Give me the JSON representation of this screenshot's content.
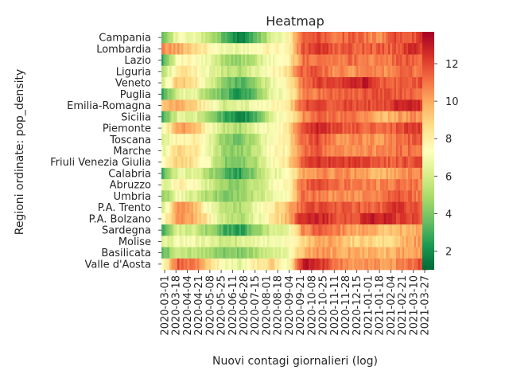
{
  "chart_data": {
    "type": "heatmap",
    "title": "Heatmap",
    "xlabel": "Nuovi contagi giornalieri (log)",
    "ylabel": "Regioni ordinate: pop_density",
    "x_tick_labels": [
      "2020-03-01",
      "2020-03-18",
      "2020-04-04",
      "2020-04-21",
      "2020-05-08",
      "2020-05-25",
      "2020-06-11",
      "2020-06-28",
      "2020-07-15",
      "2020-08-01",
      "2020-08-18",
      "2020-09-04",
      "2020-09-21",
      "2020-10-08",
      "2020-10-25",
      "2020-11-11",
      "2020-11-28",
      "2020-12-15",
      "2021-01-01",
      "2021-01-18",
      "2021-02-04",
      "2021-02-21",
      "2021-03-10",
      "2021-03-27"
    ],
    "rows": [
      "Campania",
      "Lombardia",
      "Lazio",
      "Liguria",
      "Veneto",
      "Puglia",
      "Emilia-Romagna",
      "Sicilia",
      "Piemonte",
      "Toscana",
      "Marche",
      "Friuli Venezia Giulia",
      "Calabria",
      "Abruzzo",
      "Umbria",
      "P.A. Trento",
      "P.A. Bolzano",
      "Sardegna",
      "Molise",
      "Basilicata",
      "Valle d'Aosta"
    ],
    "colorbar": {
      "ticks": [
        2,
        4,
        6,
        8,
        10,
        12
      ],
      "range": [
        1,
        13.7
      ],
      "colormap": "RdYlGn_r"
    },
    "knots": [
      [
        4,
        7,
        6.5,
        5.5,
        3.2,
        1.5,
        3.5,
        6,
        7.5,
        11.5,
        12,
        11,
        11.5,
        11,
        10.5,
        12,
        11.8,
        12.3
      ],
      [
        10.5,
        10,
        9,
        7.8,
        6.5,
        6.8,
        7.5,
        8,
        7.5,
        11.5,
        12.5,
        11.5,
        11.5,
        11.5,
        11.5,
        11.5,
        12.5,
        12.2
      ],
      [
        3,
        7.5,
        7.5,
        6.5,
        5,
        4.5,
        5.5,
        7,
        7.5,
        11,
        11.2,
        10.8,
        11.3,
        11,
        10.5,
        11.3,
        11.6,
        11.2
      ],
      [
        5,
        8.5,
        8,
        6.8,
        5.5,
        5,
        6.5,
        7.5,
        8.5,
        11.5,
        11.5,
        10.5,
        10.5,
        10.5,
        10.5,
        11,
        11.2,
        10.8
      ],
      [
        6,
        9.5,
        8.5,
        6.5,
        4,
        3.2,
        4.5,
        6.8,
        7.8,
        11,
        12,
        12.2,
        12.5,
        13,
        11.5,
        11.5,
        11.8,
        11.5
      ],
      [
        2.5,
        6.5,
        6.5,
        5,
        3.5,
        2,
        3.8,
        6.5,
        7.2,
        10.5,
        11,
        11.5,
        11.5,
        11.5,
        12,
        11.5,
        11.5,
        11.2
      ],
      [
        9,
        10,
        9,
        7.5,
        6,
        6.2,
        7,
        7.5,
        8,
        11.5,
        12.5,
        11.5,
        12,
        12,
        11.5,
        12.5,
        12.8,
        12.5
      ],
      [
        3,
        6.5,
        6.5,
        5,
        2.8,
        1.5,
        3,
        6.5,
        7.5,
        10.5,
        11.5,
        11,
        11,
        10.5,
        9.5,
        10,
        10.5,
        10.2
      ],
      [
        7,
        10,
        10,
        7.5,
        5.5,
        5,
        6.5,
        7.2,
        8,
        12,
        12.8,
        12,
        11.5,
        11.5,
        11,
        11.5,
        12.2,
        12.2
      ],
      [
        6,
        8,
        8,
        6.8,
        4.2,
        3.8,
        5.5,
        7.2,
        8,
        11.2,
        12,
        10.5,
        10.5,
        10.5,
        10.2,
        11,
        11.5,
        11.2
      ],
      [
        6.5,
        9,
        8.5,
        7,
        4.5,
        4.2,
        5.5,
        7.5,
        8,
        11,
        11.5,
        10.5,
        10.5,
        10.5,
        10.5,
        11,
        11.2,
        11
      ],
      [
        7,
        9,
        8.5,
        6.8,
        4.2,
        4,
        5,
        7.5,
        8.2,
        11.5,
        12.5,
        12,
        12,
        12,
        11.5,
        11.5,
        11.8,
        12
      ],
      [
        3,
        6.5,
        6.5,
        5,
        3.2,
        2.5,
        4.5,
        6.5,
        7,
        10,
        10.5,
        10.5,
        10.5,
        10,
        9.5,
        10.2,
        10.8,
        10.6
      ],
      [
        6,
        8,
        7.5,
        6,
        4.5,
        4.2,
        5.5,
        7,
        7.5,
        11,
        12,
        11,
        11,
        11,
        10.5,
        11,
        11,
        10.6
      ],
      [
        4,
        7,
        6,
        5,
        4.2,
        4.5,
        5.5,
        6.5,
        7,
        11,
        11,
        10.5,
        10.5,
        10.5,
        11,
        11.8,
        11.2,
        10.8
      ],
      [
        6,
        10.5,
        9.5,
        7,
        5.5,
        5,
        6.5,
        8,
        9.5,
        11.5,
        12,
        11.5,
        11.5,
        11.5,
        11.5,
        12.5,
        11.8,
        11.4
      ],
      [
        7,
        10.5,
        10,
        8,
        5.5,
        5,
        6.5,
        8,
        9.5,
        12.5,
        13,
        12,
        11.5,
        12.5,
        13,
        12,
        11.8,
        11.4
      ],
      [
        3,
        6,
        6,
        4.5,
        3,
        2.5,
        4.2,
        6,
        6.5,
        10.5,
        11.5,
        11,
        10.2,
        10,
        9.5,
        9.5,
        9.8,
        9.8
      ],
      [
        6,
        7,
        7,
        6.5,
        5.5,
        6,
        6.5,
        7,
        7.2,
        8.5,
        10,
        10,
        9,
        9,
        8.5,
        9,
        10,
        10.5
      ],
      [
        3.5,
        5.5,
        5.5,
        5,
        4,
        4,
        5,
        6,
        6.5,
        9.5,
        10.5,
        10,
        10,
        10,
        9.5,
        10,
        10.2,
        10
      ],
      [
        7,
        11.5,
        11,
        9,
        7,
        6.5,
        8,
        9,
        7,
        13,
        12.8,
        11,
        10.5,
        10.5,
        10.2,
        10.5,
        11.2,
        12
      ]
    ]
  }
}
